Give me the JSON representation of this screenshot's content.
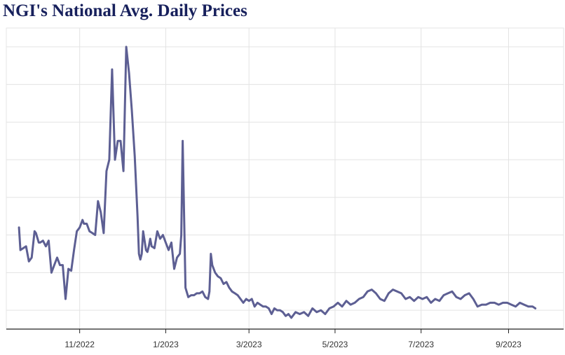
{
  "chart_data": {
    "type": "line",
    "title": "NGI's National Avg. Daily Prices",
    "xlabel": "",
    "ylabel": "",
    "x_ticks": [
      {
        "label": "11/2022",
        "date": "2022-11-01"
      },
      {
        "label": "1/2023",
        "date": "2023-01-01"
      },
      {
        "label": "3/2023",
        "date": "2023-03-01"
      },
      {
        "label": "5/2023",
        "date": "2023-05-01"
      },
      {
        "label": "7/2023",
        "date": "2023-07-01"
      },
      {
        "label": "9/2023",
        "date": "2023-09-01"
      }
    ],
    "xlim": [
      "2022-09-10",
      "2023-10-10"
    ],
    "ylim": [
      -0.5,
      7.5
    ],
    "y_gridlines": [
      0,
      1,
      2,
      3,
      4,
      5,
      6,
      7
    ],
    "grid": true,
    "legend": "none",
    "colors": {
      "line": "#5d5f93",
      "grid": "#e3e3e3",
      "axis": "#222222",
      "title": "#17205c"
    },
    "series": [
      {
        "x": [
          "2022-09-19",
          "2022-09-20",
          "2022-09-22",
          "2022-09-24",
          "2022-09-26",
          "2022-09-28",
          "2022-09-30",
          "2022-10-01",
          "2022-10-03",
          "2022-10-04",
          "2022-10-06",
          "2022-10-08",
          "2022-10-10",
          "2022-10-12",
          "2022-10-14",
          "2022-10-16",
          "2022-10-18",
          "2022-10-20",
          "2022-10-22",
          "2022-10-24",
          "2022-10-26",
          "2022-10-28",
          "2022-10-30",
          "2022-11-01",
          "2022-11-03",
          "2022-11-04",
          "2022-11-06",
          "2022-11-08",
          "2022-11-10",
          "2022-11-12",
          "2022-11-14",
          "2022-11-16",
          "2022-11-18",
          "2022-11-20",
          "2022-11-22",
          "2022-11-24",
          "2022-11-26",
          "2022-11-28",
          "2022-11-30",
          "2022-12-02",
          "2022-12-04",
          "2022-12-06",
          "2022-12-08",
          "2022-12-10",
          "2022-12-12",
          "2022-12-13",
          "2022-12-14",
          "2022-12-15",
          "2022-12-16",
          "2022-12-18",
          "2022-12-19",
          "2022-12-20",
          "2022-12-21",
          "2022-12-22",
          "2022-12-24",
          "2022-12-26",
          "2022-12-28",
          "2022-12-30",
          "2023-01-01",
          "2023-01-03",
          "2023-01-05",
          "2023-01-07",
          "2023-01-09",
          "2023-01-10",
          "2023-01-11",
          "2023-01-12",
          "2023-01-13",
          "2023-01-15",
          "2023-01-17",
          "2023-01-19",
          "2023-01-21",
          "2023-01-23",
          "2023-01-25",
          "2023-01-27",
          "2023-01-29",
          "2023-01-31",
          "2023-02-01",
          "2023-02-02",
          "2023-02-03",
          "2023-02-05",
          "2023-02-07",
          "2023-02-09",
          "2023-02-11",
          "2023-02-13",
          "2023-02-15",
          "2023-02-17",
          "2023-02-19",
          "2023-02-21",
          "2023-02-23",
          "2023-02-25",
          "2023-02-27",
          "2023-03-01",
          "2023-03-03",
          "2023-03-05",
          "2023-03-07",
          "2023-03-09",
          "2023-03-11",
          "2023-03-13",
          "2023-03-15",
          "2023-03-17",
          "2023-03-19",
          "2023-03-21",
          "2023-03-23",
          "2023-03-25",
          "2023-03-27",
          "2023-03-29",
          "2023-03-31",
          "2023-04-03",
          "2023-04-06",
          "2023-04-09",
          "2023-04-12",
          "2023-04-15",
          "2023-04-18",
          "2023-04-21",
          "2023-04-24",
          "2023-04-27",
          "2023-04-30",
          "2023-05-03",
          "2023-05-06",
          "2023-05-09",
          "2023-05-12",
          "2023-05-15",
          "2023-05-18",
          "2023-05-21",
          "2023-05-24",
          "2023-05-27",
          "2023-05-30",
          "2023-06-02",
          "2023-06-05",
          "2023-06-08",
          "2023-06-11",
          "2023-06-14",
          "2023-06-17",
          "2023-06-20",
          "2023-06-23",
          "2023-06-26",
          "2023-06-29",
          "2023-07-02",
          "2023-07-05",
          "2023-07-08",
          "2023-07-11",
          "2023-07-14",
          "2023-07-17",
          "2023-07-20",
          "2023-07-23",
          "2023-07-26",
          "2023-07-29",
          "2023-08-01",
          "2023-08-04",
          "2023-08-07",
          "2023-08-10",
          "2023-08-13",
          "2023-08-16",
          "2023-08-19",
          "2023-08-22",
          "2023-08-25",
          "2023-08-28",
          "2023-08-31",
          "2023-09-03",
          "2023-09-06",
          "2023-09-09",
          "2023-09-12",
          "2023-09-15",
          "2023-09-18",
          "2023-09-20"
        ],
        "y": [
          2.2,
          1.6,
          1.65,
          1.7,
          1.3,
          1.4,
          2.1,
          2.05,
          1.8,
          1.8,
          1.85,
          1.7,
          1.85,
          1.0,
          1.2,
          1.4,
          1.2,
          1.2,
          0.3,
          1.1,
          1.05,
          1.6,
          2.1,
          2.2,
          2.4,
          2.3,
          2.3,
          2.1,
          2.05,
          2.0,
          2.9,
          2.6,
          2.05,
          3.7,
          4.0,
          6.4,
          4.0,
          4.5,
          4.5,
          3.7,
          7.0,
          6.3,
          5.3,
          4.1,
          2.5,
          1.5,
          1.35,
          1.5,
          2.1,
          1.6,
          1.55,
          1.7,
          1.9,
          1.7,
          1.65,
          2.1,
          1.9,
          2.0,
          1.8,
          1.6,
          1.8,
          1.1,
          1.4,
          1.45,
          1.5,
          2.0,
          4.5,
          0.6,
          0.35,
          0.4,
          0.4,
          0.45,
          0.45,
          0.5,
          0.35,
          0.3,
          0.5,
          1.5,
          1.2,
          1.0,
          0.9,
          0.85,
          0.7,
          0.75,
          0.6,
          0.5,
          0.45,
          0.4,
          0.3,
          0.2,
          0.3,
          0.25,
          0.3,
          0.1,
          0.2,
          0.15,
          0.1,
          0.1,
          0.05,
          -0.1,
          0.05,
          0.0,
          0.0,
          -0.05,
          -0.15,
          -0.1,
          -0.2,
          -0.05,
          -0.1,
          -0.05,
          -0.15,
          0.05,
          -0.05,
          0.0,
          -0.1,
          0.05,
          0.1,
          0.2,
          0.1,
          0.25,
          0.15,
          0.2,
          0.3,
          0.35,
          0.5,
          0.55,
          0.45,
          0.3,
          0.25,
          0.45,
          0.55,
          0.5,
          0.45,
          0.3,
          0.35,
          0.25,
          0.35,
          0.3,
          0.35,
          0.2,
          0.3,
          0.25,
          0.4,
          0.45,
          0.5,
          0.35,
          0.3,
          0.4,
          0.45,
          0.3,
          0.1,
          0.15,
          0.15,
          0.2,
          0.2,
          0.15,
          0.2,
          0.2,
          0.15,
          0.1,
          0.2,
          0.15,
          0.1,
          0.1,
          0.05
        ]
      }
    ]
  }
}
